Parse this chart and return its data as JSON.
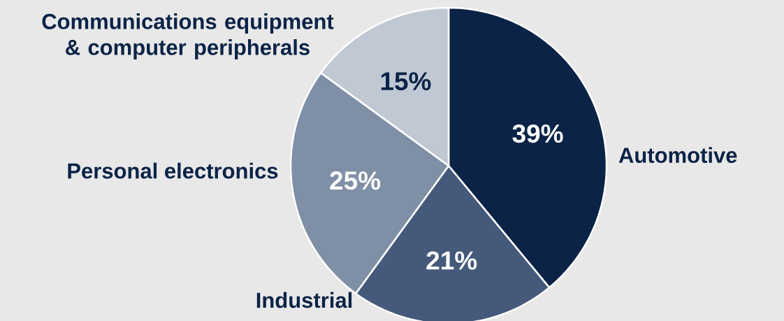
{
  "chart_data": {
    "type": "pie",
    "categories": [
      "Automotive",
      "Industrial",
      "Personal electronics",
      "Communications equipment & computer peripherals"
    ],
    "values": [
      39,
      21,
      25,
      15
    ],
    "colors": [
      "#0b2347",
      "#45597a",
      "#7f90a6",
      "#c0c8d3"
    ],
    "value_labels": [
      "39%",
      "21%",
      "25%",
      "15%"
    ]
  }
}
